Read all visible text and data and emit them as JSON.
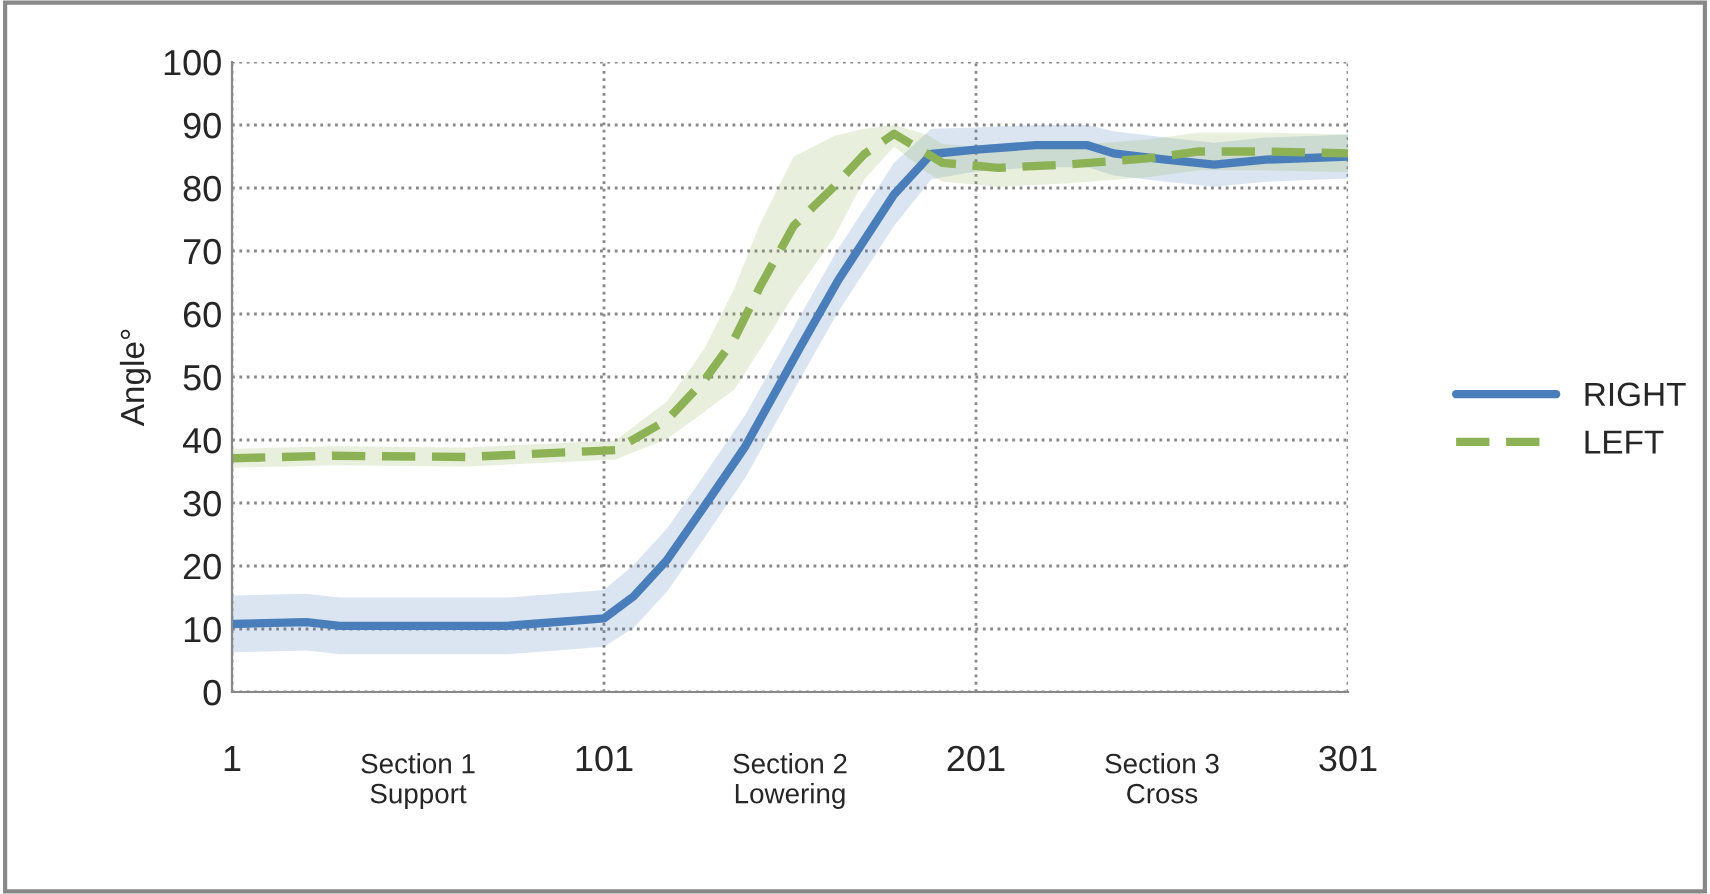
{
  "chart_data": {
    "type": "line",
    "ylabel": "Angle°",
    "xlim": [
      1,
      301
    ],
    "xticks": [
      1,
      101,
      201,
      301
    ],
    "ylim": [
      0,
      100
    ],
    "yticks": [
      0,
      10,
      20,
      30,
      40,
      50,
      60,
      70,
      80,
      90,
      100
    ],
    "grid": true,
    "legend": "right",
    "marker": "none",
    "annotations": [
      "Section 1\nSupport",
      "Section 2\nLowering",
      "Section 3\nCross"
    ],
    "series": [
      {
        "name": "RIGHT",
        "color": "#4a7ebb",
        "line_style": "solid",
        "x": [
          1,
          21,
          30,
          75,
          101,
          109,
          118,
          128,
          139,
          154,
          164,
          179,
          189,
          201,
          217,
          231,
          238,
          252,
          265,
          279,
          301
        ],
        "values": [
          10.8,
          11.1,
          10.5,
          10.5,
          11.7,
          15.2,
          21,
          29.5,
          39,
          55,
          65.4,
          79,
          85.4,
          86.1,
          86.8,
          86.8,
          85.5,
          84.5,
          83.7,
          84.5,
          85
        ],
        "lower": [
          6.3,
          6.6,
          6,
          6,
          7.2,
          10.2,
          16,
          24.5,
          34,
          50,
          60.4,
          74,
          81.4,
          82.6,
          83.3,
          83.3,
          82,
          81,
          80.2,
          81,
          81.5
        ],
        "upper": [
          15.3,
          15.6,
          15,
          15,
          16.2,
          20.2,
          26,
          34.5,
          44,
          60,
          70.4,
          84,
          89.4,
          89.6,
          90,
          90,
          89,
          88,
          87.2,
          88,
          88.5
        ]
      },
      {
        "name": "LEFT",
        "color": "#8db255",
        "line_style": "dashed",
        "x": [
          1,
          28,
          64,
          93,
          104,
          118,
          128,
          136,
          143,
          152,
          163,
          171,
          179,
          188,
          192,
          207,
          225,
          247,
          261,
          279,
          301
        ],
        "values": [
          37.1,
          37.5,
          37.3,
          38.1,
          38.4,
          43.2,
          49.5,
          56,
          64.4,
          74,
          80.3,
          85.4,
          88.6,
          85.4,
          84,
          83.2,
          83.7,
          84.7,
          85.8,
          85.8,
          85.5
        ],
        "lower": [
          35.6,
          36,
          35.8,
          36.6,
          36.9,
          40.2,
          44.5,
          48,
          54.4,
          63,
          72.3,
          81.4,
          86.6,
          82.4,
          81,
          80.2,
          80.7,
          81.7,
          82.8,
          82.8,
          82.5
        ],
        "upper": [
          38.6,
          39,
          38.8,
          39.6,
          39.9,
          46.2,
          54.5,
          64,
          74.4,
          85,
          88.3,
          89.4,
          90,
          88.4,
          87,
          86.2,
          86.7,
          87.7,
          88.8,
          88.8,
          88.5
        ]
      }
    ]
  }
}
